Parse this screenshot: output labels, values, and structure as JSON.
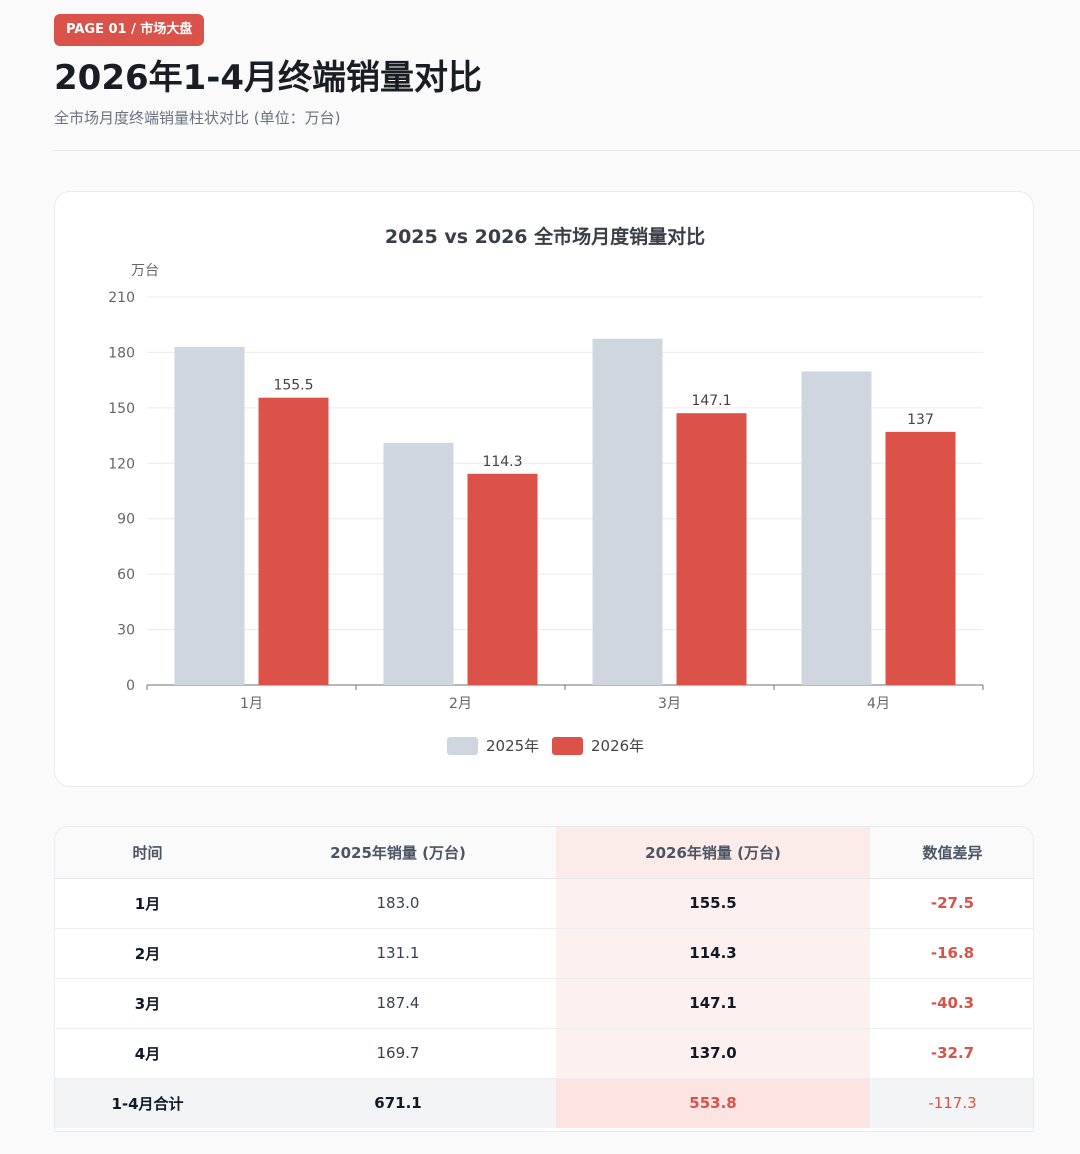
{
  "header": {
    "badge": "PAGE 01 / 市场大盘",
    "title": "2026年1-4月终端销量对比",
    "subtitle": "全市场月度终端销量柱状对比 (单位：万台)"
  },
  "colors": {
    "accent": "#d9534a",
    "series_2025": "#cfd6e0",
    "series_2026": "#dc5148"
  },
  "chart_data": {
    "type": "bar",
    "title": "2025 vs 2026 全市场月度销量对比",
    "ylabel": "万台",
    "xlabel": "",
    "categories": [
      "1月",
      "2月",
      "3月",
      "4月"
    ],
    "ylim": [
      0,
      210
    ],
    "yticks": [
      "0",
      "30",
      "60",
      "90",
      "120",
      "150",
      "180",
      "210"
    ],
    "series": [
      {
        "name": "2025年",
        "values": [
          183.0,
          131.1,
          187.4,
          169.7
        ],
        "labels": [
          "",
          "",
          "",
          ""
        ]
      },
      {
        "name": "2026年",
        "values": [
          155.5,
          114.3,
          147.1,
          137.0
        ],
        "labels": [
          "155.5",
          "114.3",
          "147.1",
          "137"
        ]
      }
    ],
    "legend": "bottom-center",
    "grid": true
  },
  "table": {
    "headers": [
      "时间",
      "2025年销量 (万台)",
      "2026年销量 (万台)",
      "数值差异"
    ],
    "rows": [
      [
        "1月",
        "183.0",
        "155.5",
        "-27.5"
      ],
      [
        "2月",
        "131.1",
        "114.3",
        "-16.8"
      ],
      [
        "3月",
        "187.4",
        "147.1",
        "-40.3"
      ],
      [
        "4月",
        "169.7",
        "137.0",
        "-32.7"
      ]
    ],
    "total": [
      "1-4月合计",
      "671.1",
      "553.8",
      "-117.3"
    ]
  }
}
